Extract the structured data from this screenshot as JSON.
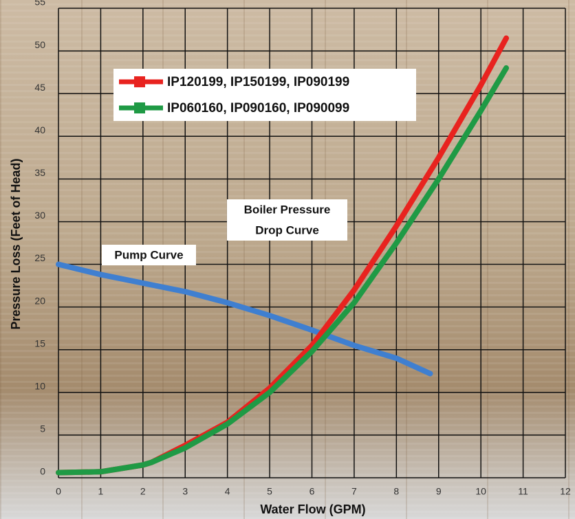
{
  "chart_data": {
    "type": "line",
    "x_label": "Water Flow (GPM)",
    "y_label": "Pressure Loss (Feet of Head)",
    "xlim": [
      0,
      12
    ],
    "xticks": [
      0,
      1,
      2,
      3,
      4,
      5,
      6,
      7,
      8,
      9,
      10,
      11,
      12
    ],
    "ylim": [
      0,
      55
    ],
    "yticks": [
      0,
      5,
      10,
      15,
      20,
      25,
      30,
      35,
      40,
      45,
      50,
      55
    ],
    "grid": true,
    "legend_position": "upper left",
    "series": [
      {
        "name": "IP120199, IP150199, IP090199",
        "color": "#e8231f",
        "x": [
          0,
          1,
          2,
          2.2,
          3,
          4,
          5,
          6,
          7,
          8,
          9,
          10,
          10.6
        ],
        "values": [
          0.6,
          0.7,
          1.5,
          1.8,
          3.8,
          6.5,
          10.5,
          15.5,
          22,
          29.5,
          37.5,
          46,
          51.5
        ]
      },
      {
        "name": "IP060160, IP090160, IP090099",
        "color": "#1f9a45",
        "x": [
          0,
          1,
          2,
          2.2,
          3,
          4,
          5,
          6,
          7,
          8,
          9,
          10,
          10.6
        ],
        "values": [
          0.6,
          0.7,
          1.5,
          1.8,
          3.5,
          6.3,
          10,
          14.8,
          20.5,
          27.5,
          35,
          43,
          48
        ]
      },
      {
        "color": "#3f7fd0",
        "x": [
          0,
          1,
          2,
          3,
          4,
          5,
          6,
          7,
          8,
          8.8
        ],
        "values": [
          25,
          23.8,
          22.8,
          21.8,
          20.5,
          19,
          17.3,
          15.5,
          14,
          12.2
        ]
      }
    ],
    "annotations": [
      {
        "lines": [
          "Pump Curve"
        ]
      },
      {
        "lines": [
          "Boiler Pressure",
          "Drop Curve"
        ]
      }
    ]
  }
}
